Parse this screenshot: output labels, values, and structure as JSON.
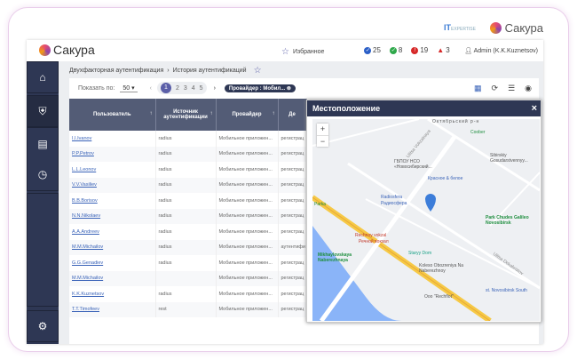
{
  "brand": {
    "name": "Сакура",
    "partner": "IT",
    "partner_sub": "EXPERTISE"
  },
  "header": {
    "favorites": "Избранное",
    "counts": [
      {
        "value": "25",
        "color": "#2b5fc7"
      },
      {
        "value": "8",
        "color": "#2ea84a"
      },
      {
        "value": "19",
        "color": "#d62828"
      },
      {
        "value": "3",
        "color": "#d62828"
      }
    ],
    "user": "Admin (K.K.Kuznetsov)"
  },
  "breadcrumb": [
    "Двухфакторная аутентификация",
    "История аутентификаций"
  ],
  "toolbar": {
    "show_label": "Показать по:",
    "page_size": "50",
    "pages": [
      "1",
      "2",
      "3",
      "4",
      "5"
    ],
    "current_page": "1",
    "filter_chip": "Провайдер : Мобил..."
  },
  "table": {
    "columns": [
      "Пользователь",
      "Источник аутентификации",
      "Провайдер",
      "Де"
    ],
    "rows": [
      [
        "I.I.Ivanov",
        "radius",
        "Мобильное приложен...",
        "регистрац"
      ],
      [
        "P.P.Petrov",
        "radius",
        "Мобильное приложен...",
        "регистрац"
      ],
      [
        "L.L.Leonov",
        "radius",
        "Мобильное приложен...",
        "регистрац"
      ],
      [
        "V.V.Vasiliev",
        "radius",
        "Мобильное приложен...",
        "регистрац"
      ],
      [
        "B.B.Borisov",
        "radius",
        "Мобильное приложен...",
        "регистрац"
      ],
      [
        "N.N.Nikolaev",
        "radius",
        "Мобильное приложен...",
        "регистрац"
      ],
      [
        "A.A.Andreev",
        "radius",
        "Мобильное приложен...",
        "регистрац"
      ],
      [
        "M.M.Michailov",
        "radius",
        "Мобильное приложен...",
        "аутентифи"
      ],
      [
        "G.G.Genadiev",
        "radius",
        "Мобильное приложен...",
        "регистрац"
      ],
      [
        "M.M.Michailov",
        "",
        "Мобильное приложен...",
        "регистрац"
      ],
      [
        "K.K.Kuznetsov",
        "radius",
        "Мобильное приложен...",
        "регистрац"
      ],
      [
        "T.T.Timofeev",
        "rest",
        "Мобильное приложен...",
        "регистрац"
      ]
    ]
  },
  "popup": {
    "title": "Местоположение",
    "close": "×",
    "zoom_in": "+",
    "zoom_out": "−",
    "map_labels": [
      "Октябрьский р-н",
      "Coober",
      "ГБПОУ НСО «Новосибирский...",
      "Sibirskiy Gosudarstvennyy...",
      "Красное & белое",
      "Radiosfera",
      "Радиосфера",
      "Park Chudes Galileo Novosibirsk",
      "Rechnoy vokzal",
      "Речной вокзал",
      "Staryy Dom",
      "Mikhaylovskaya Naberezhnaya",
      "Koleso Obozreniya Na Naberezhnoy",
      "Ooo \"Rechflot\"",
      "st. Novosibirsk South",
      "Parka",
      "Ulitsa Vokzalnaya",
      "Ulitsa Dekabristov"
    ]
  }
}
